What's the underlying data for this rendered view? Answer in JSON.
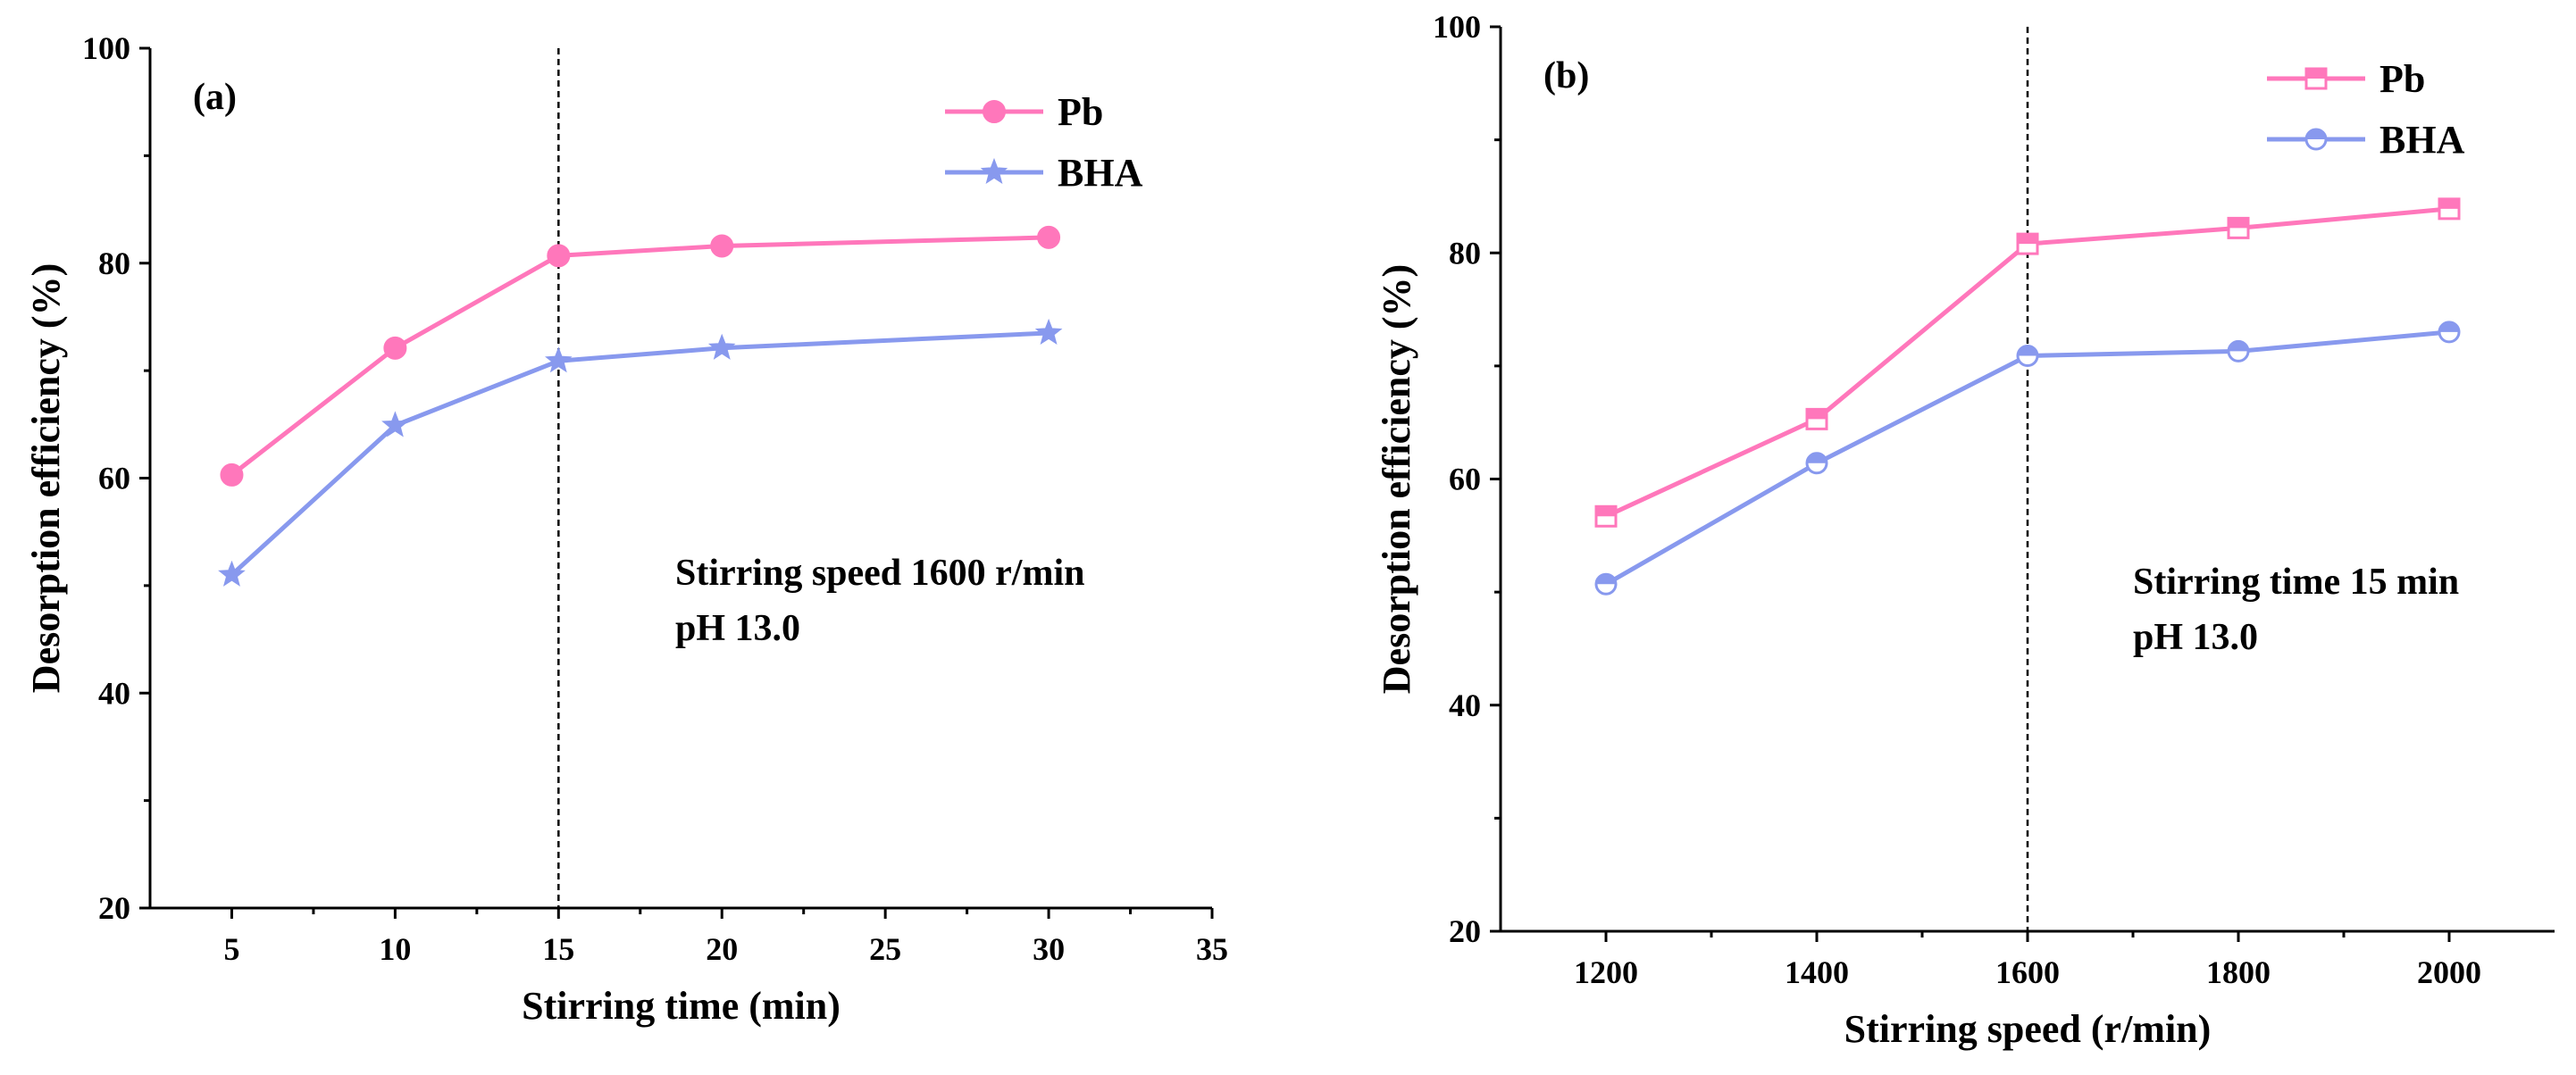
{
  "colors": {
    "pb": "#ff77bb",
    "bha": "#8899ee"
  },
  "chart_data": [
    {
      "type": "line",
      "panel_label": "(a)",
      "xlabel": "Stirring time (min)",
      "ylabel": "Desorption efficiency (%)",
      "xlim": [
        2.5,
        35
      ],
      "ylim": [
        20,
        100
      ],
      "xticks": [
        5,
        10,
        15,
        20,
        25,
        30,
        35
      ],
      "yticks": [
        20,
        40,
        60,
        80,
        100
      ],
      "x": [
        5,
        10,
        15,
        20,
        30
      ],
      "series": [
        {
          "name": "Pb",
          "marker": "circle-filled",
          "values": [
            60.3,
            72.1,
            80.7,
            81.6,
            82.4
          ]
        },
        {
          "name": "BHA",
          "marker": "star",
          "values": [
            51.0,
            64.9,
            70.9,
            72.1,
            73.5
          ]
        }
      ],
      "reference_line_x": 15,
      "annotation": [
        "Stirring speed 1600 r/min",
        "pH 13.0"
      ],
      "legend": "top-right"
    },
    {
      "type": "line",
      "panel_label": "(b)",
      "xlabel": "Stirring speed (r/min)",
      "ylabel": "Desorption efficiency (%)",
      "xlim": [
        1100,
        2100
      ],
      "ylim": [
        20,
        100
      ],
      "xticks": [
        1200,
        1400,
        1600,
        1800,
        2000
      ],
      "yticks": [
        20,
        40,
        60,
        80,
        100
      ],
      "x": [
        1200,
        1400,
        1600,
        1800,
        2000
      ],
      "series": [
        {
          "name": "Pb",
          "marker": "square-open",
          "values": [
            56.7,
            65.3,
            80.8,
            82.2,
            83.9
          ]
        },
        {
          "name": "BHA",
          "marker": "circle-half",
          "values": [
            50.7,
            61.4,
            70.9,
            71.3,
            73.0
          ]
        }
      ],
      "reference_line_x": 1600,
      "annotation": [
        "Stirring time 15 min",
        "pH 13.0"
      ],
      "legend": "top-right"
    }
  ]
}
